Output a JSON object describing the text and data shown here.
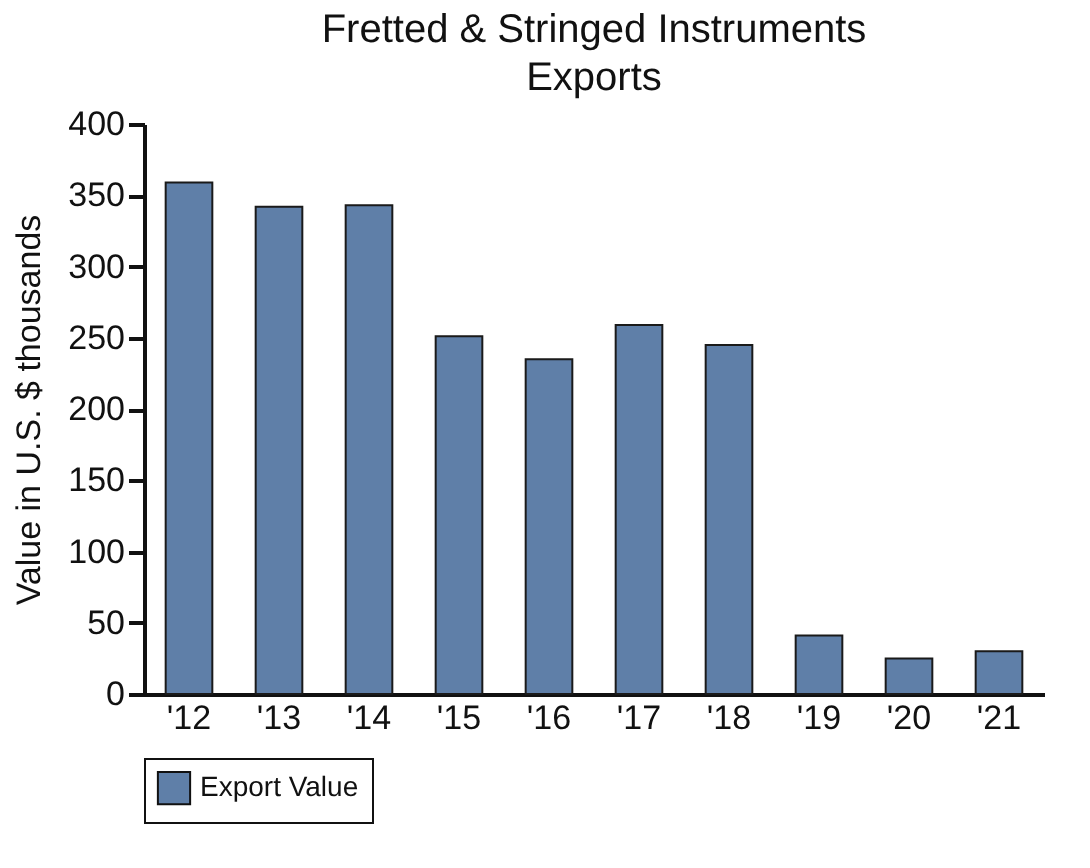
{
  "chart_data": {
    "type": "bar",
    "title": "Fretted & Stringed Instruments\nExports",
    "ylabel": "Value in U.S. $ thousands",
    "categories": [
      "'12",
      "'13",
      "'14",
      "'15",
      "'16",
      "'17",
      "'18",
      "'19",
      "'20",
      "'21"
    ],
    "series": [
      {
        "name": "Export Value",
        "color": "#5f7fa8",
        "values": [
          359,
          342,
          343,
          251,
          235,
          259,
          245,
          41,
          25,
          30
        ]
      }
    ],
    "ylim": [
      0,
      400
    ],
    "yticks": [
      0,
      50,
      100,
      150,
      200,
      250,
      300,
      350,
      400
    ],
    "grid": false,
    "legend": "bottom"
  }
}
